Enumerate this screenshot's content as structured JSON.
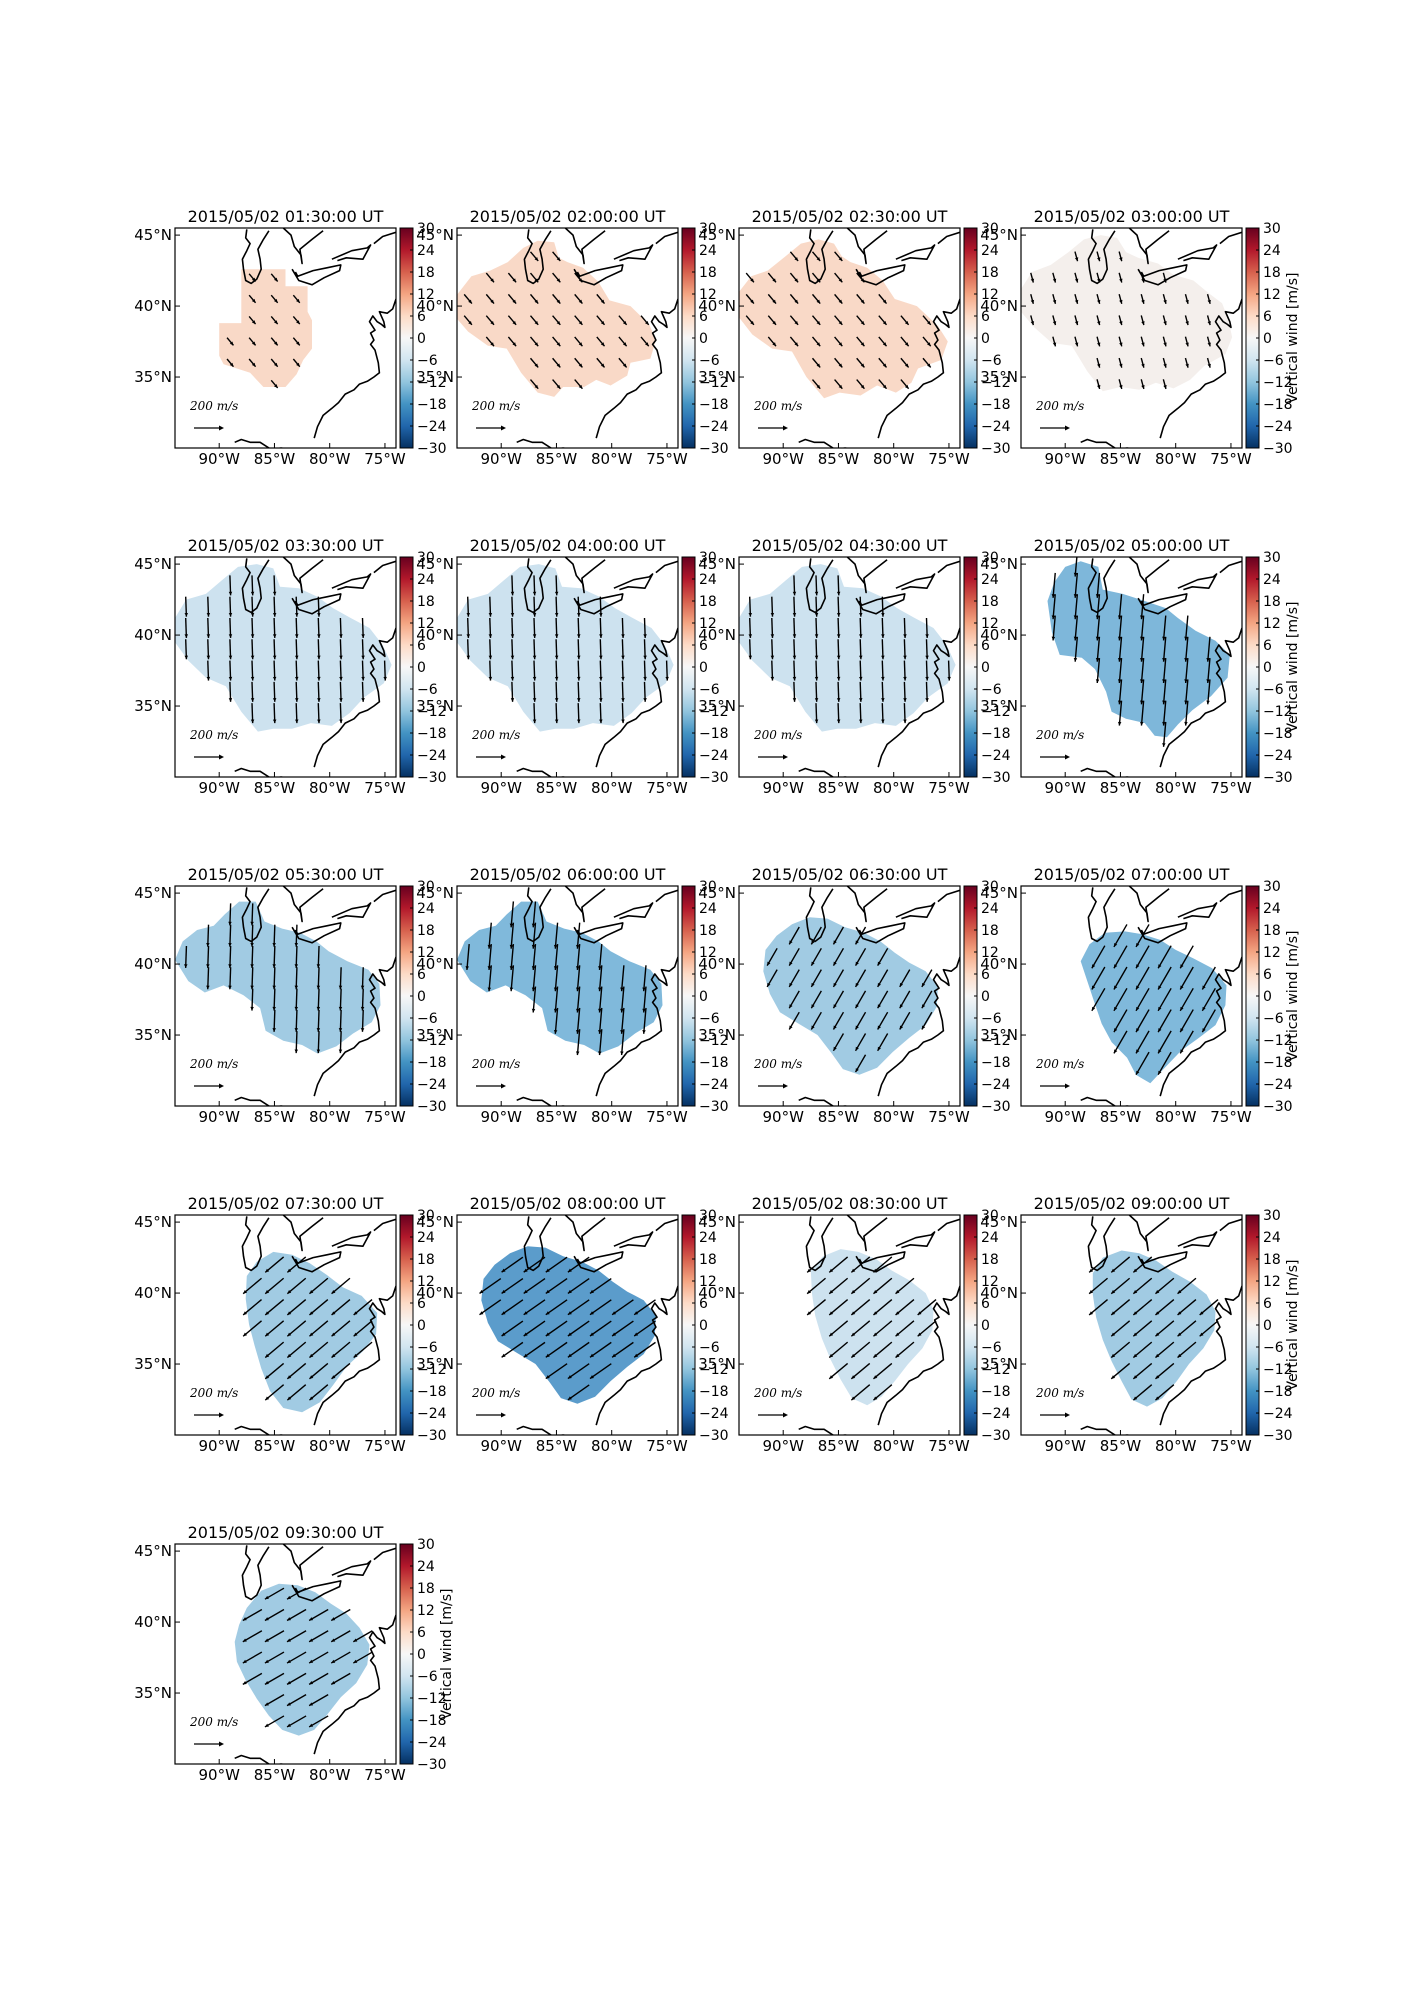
{
  "figure": {
    "panels": [
      {
        "title": "2015/05/02 01:30:00 UT",
        "fill": "#f9d9c7"
      },
      {
        "title": "2015/05/02 02:00:00 UT",
        "fill": "#f9d9c7"
      },
      {
        "title": "2015/05/02 02:30:00 UT",
        "fill": "#f9d9c7"
      },
      {
        "title": "2015/05/02 03:00:00 UT",
        "fill": "#f4efec"
      },
      {
        "title": "2015/05/02 03:30:00 UT",
        "fill": "#cde2ef"
      },
      {
        "title": "2015/05/02 04:00:00 UT",
        "fill": "#cde2ef"
      },
      {
        "title": "2015/05/02 04:30:00 UT",
        "fill": "#cde2ef"
      },
      {
        "title": "2015/05/02 05:00:00 UT",
        "fill": "#7eb7da"
      },
      {
        "title": "2015/05/02 05:30:00 UT",
        "fill": "#a1cbe3"
      },
      {
        "title": "2015/05/02 06:00:00 UT",
        "fill": "#80b9db"
      },
      {
        "title": "2015/05/02 06:30:00 UT",
        "fill": "#a1cbe3"
      },
      {
        "title": "2015/05/02 07:00:00 UT",
        "fill": "#80b9db"
      },
      {
        "title": "2015/05/02 07:30:00 UT",
        "fill": "#a1cbe3"
      },
      {
        "title": "2015/05/02 08:00:00 UT",
        "fill": "#5b9ccb"
      },
      {
        "title": "2015/05/02 08:30:00 UT",
        "fill": "#cde2ef"
      },
      {
        "title": "2015/05/02 09:00:00 UT",
        "fill": "#a1cbe3"
      },
      {
        "title": "2015/05/02 09:30:00 UT",
        "fill": "#a1cbe3"
      }
    ],
    "reference_arrow_label": "200 m/s",
    "colorbar_label": "Vertical wind [m/s]",
    "colorbar_ticks": [
      "30",
      "24",
      "18",
      "12",
      "6",
      "0",
      "−6",
      "−12",
      "−18",
      "−24",
      "−30"
    ],
    "lon_ticks": [
      "90°W",
      "85°W",
      "80°W",
      "75°W"
    ],
    "lat_ticks": [
      "45°N",
      "40°N",
      "35°N"
    ],
    "colormap": [
      "#67001f",
      "#b2182b",
      "#d6604d",
      "#f4a582",
      "#fddbc7",
      "#f7f7f7",
      "#d1e5f0",
      "#92c5de",
      "#4393c3",
      "#2166ac",
      "#053061"
    ]
  },
  "chart_data": {
    "type": "heatmap",
    "variable": "Vertical wind",
    "unit": "m/s",
    "colorbar_range": [
      -30,
      30
    ],
    "extent": {
      "lon": [
        -94,
        -74
      ],
      "lat": [
        30,
        45.5
      ]
    },
    "x_ticks": [
      "90°W",
      "85°W",
      "80°W",
      "75°W"
    ],
    "y_ticks": [
      "45°N",
      "40°N",
      "35°N"
    ],
    "reference_vector": {
      "magnitude": 200,
      "unit": "m/s"
    },
    "panels": [
      {
        "time": "2015/05/02 01:30:00 UT",
        "vertical_wind": 8
      },
      {
        "time": "2015/05/02 02:00:00 UT",
        "vertical_wind": 8
      },
      {
        "time": "2015/05/02 02:30:00 UT",
        "vertical_wind": 8
      },
      {
        "time": "2015/05/02 03:00:00 UT",
        "vertical_wind": 1
      },
      {
        "time": "2015/05/02 03:30:00 UT",
        "vertical_wind": -5
      },
      {
        "time": "2015/05/02 04:00:00 UT",
        "vertical_wind": -5
      },
      {
        "time": "2015/05/02 04:30:00 UT",
        "vertical_wind": -5
      },
      {
        "time": "2015/05/02 05:00:00 UT",
        "vertical_wind": -12
      },
      {
        "time": "2015/05/02 05:30:00 UT",
        "vertical_wind": -9
      },
      {
        "time": "2015/05/02 06:00:00 UT",
        "vertical_wind": -12
      },
      {
        "time": "2015/05/02 06:30:00 UT",
        "vertical_wind": -9
      },
      {
        "time": "2015/05/02 07:00:00 UT",
        "vertical_wind": -12
      },
      {
        "time": "2015/05/02 07:30:00 UT",
        "vertical_wind": -9
      },
      {
        "time": "2015/05/02 08:00:00 UT",
        "vertical_wind": -15
      },
      {
        "time": "2015/05/02 08:30:00 UT",
        "vertical_wind": -5
      },
      {
        "time": "2015/05/02 09:00:00 UT",
        "vertical_wind": -9
      },
      {
        "time": "2015/05/02 09:30:00 UT",
        "vertical_wind": -9
      }
    ]
  }
}
